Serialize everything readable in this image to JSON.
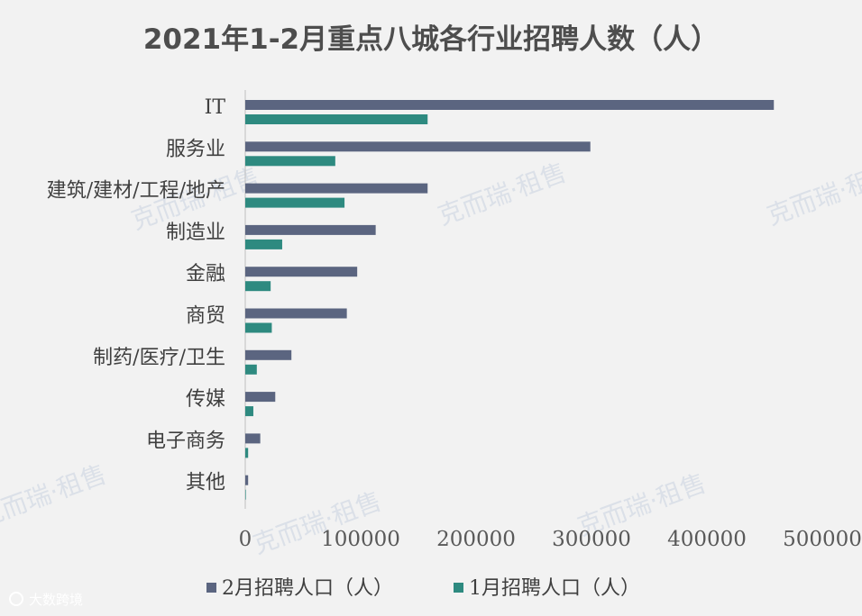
{
  "chart_data": {
    "type": "bar",
    "orientation": "horizontal",
    "title": "2021年1-2月重点八城各行业招聘人数（人）",
    "categories": [
      "IT",
      "服务业",
      "建筑/建材/工程/地产",
      "制造业",
      "金融",
      "商贸",
      "制药/医疗/卫生",
      "传媒",
      "电子商务",
      "其他"
    ],
    "series": [
      {
        "name": "2月招聘人口（人）",
        "color": "#5b6580",
        "values": [
          458000,
          299000,
          158000,
          113000,
          97000,
          88000,
          40000,
          26000,
          13000,
          2500
        ]
      },
      {
        "name": "1月招聘人口（人）",
        "color": "#2e8a80",
        "values": [
          158000,
          78000,
          86000,
          32000,
          22000,
          23000,
          10000,
          7000,
          2500,
          500
        ]
      }
    ],
    "xlim": [
      0,
      500000
    ],
    "xticks": [
      "0",
      "100000",
      "200000",
      "300000",
      "400000",
      "500000"
    ],
    "grid": false,
    "legend_position": "bottom"
  },
  "watermark": "克而瑞·租售",
  "logo": "大数跨境"
}
